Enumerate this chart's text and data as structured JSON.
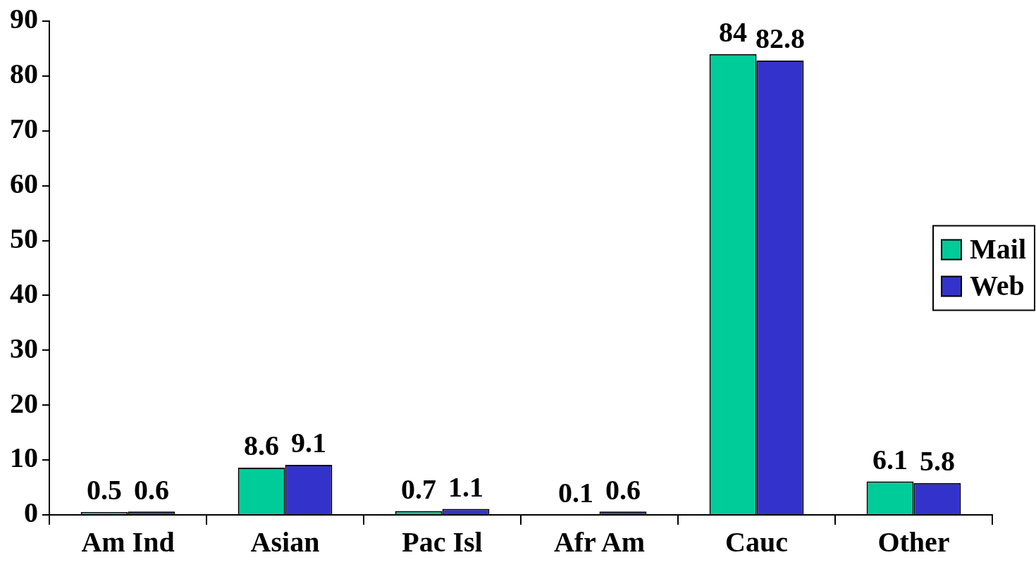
{
  "chart_data": {
    "type": "bar",
    "categories": [
      "Am Ind",
      "Asian",
      "Pac Isl",
      "Afr Am",
      "Cauc",
      "Other"
    ],
    "series": [
      {
        "name": "Mail",
        "color": "#00cc99",
        "values": [
          0.5,
          8.6,
          0.7,
          0.1,
          84,
          6.1
        ]
      },
      {
        "name": "Web",
        "color": "#3333cc",
        "values": [
          0.6,
          9.1,
          1.1,
          0.6,
          82.8,
          5.8
        ]
      }
    ],
    "ylim": [
      0,
      90
    ],
    "yticks": [
      0,
      10,
      20,
      30,
      40,
      50,
      60,
      70,
      80,
      90
    ],
    "data_labels": true,
    "legend": "right"
  }
}
